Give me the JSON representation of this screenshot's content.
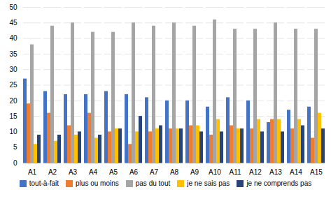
{
  "chart_data": {
    "type": "bar",
    "categories": [
      "A1",
      "A2",
      "A3",
      "A4",
      "A5",
      "A6",
      "A7",
      "A8",
      "A9",
      "A10",
      "A11",
      "A12",
      "A13",
      "A14",
      "A15"
    ],
    "series": [
      {
        "name": "tout-à-fait",
        "color": "#4472c4",
        "values": [
          27,
          23,
          22,
          22,
          23,
          22,
          21,
          20,
          20,
          18,
          21,
          20,
          13,
          17,
          18
        ]
      },
      {
        "name": "plus ou moins",
        "color": "#ed7d31",
        "values": [
          19,
          16,
          12,
          16,
          10,
          6,
          10,
          11,
          12,
          9,
          12,
          11,
          14,
          11,
          8
        ]
      },
      {
        "name": "pas du tout",
        "color": "#a5a5a5",
        "values": [
          38,
          44,
          45,
          42,
          42,
          45,
          44,
          45,
          44,
          46,
          43,
          43,
          45,
          43,
          43
        ]
      },
      {
        "name": "je ne sais pas",
        "color": "#ffc000",
        "values": [
          6,
          7,
          9,
          8,
          11,
          10,
          11,
          11,
          12,
          14,
          11,
          14,
          14,
          14,
          16
        ]
      },
      {
        "name": "je ne comprends pas",
        "color": "#264478",
        "values": [
          9,
          9,
          10,
          9,
          11,
          15,
          12,
          11,
          10,
          10,
          11,
          10,
          10,
          12,
          11
        ]
      }
    ],
    "ylim": [
      0,
      50
    ],
    "yticks": [
      0,
      5,
      10,
      15,
      20,
      25,
      30,
      35,
      40,
      45,
      50
    ],
    "grid": true,
    "legend": "bottom"
  }
}
